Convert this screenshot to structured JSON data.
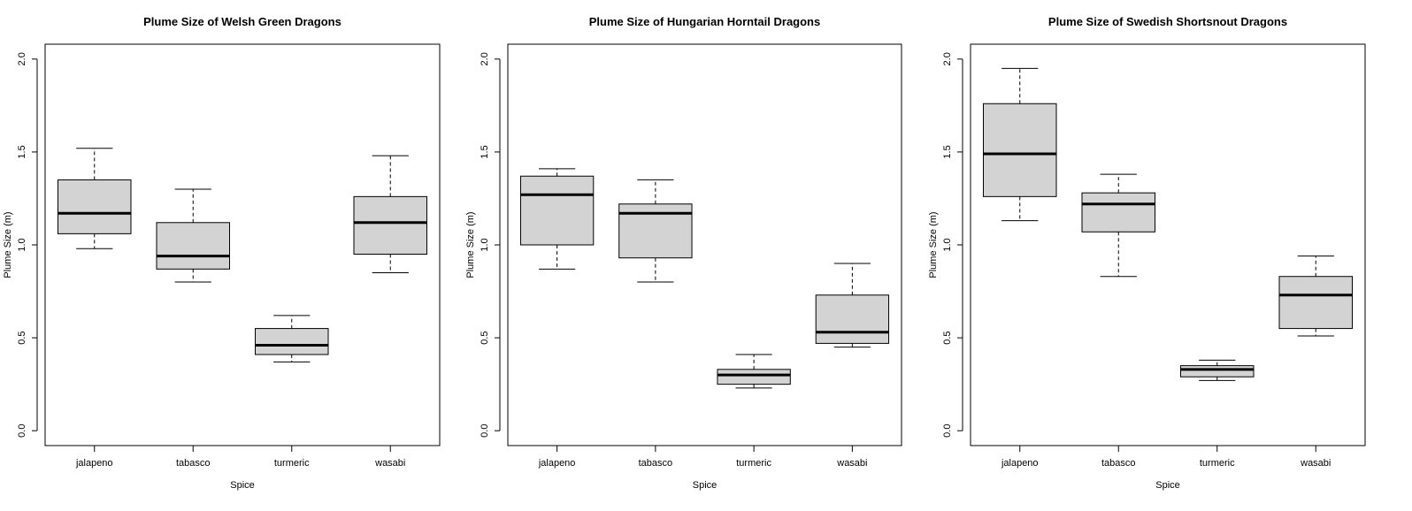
{
  "chart_data": [
    {
      "type": "boxplot",
      "title": "Plume Size of Welsh Green Dragons",
      "xlabel": "Spice",
      "ylabel": "Plume Size (m)",
      "categories": [
        "jalapeno",
        "tabasco",
        "turmeric",
        "wasabi"
      ],
      "yticks": [
        "0.0",
        "0.5",
        "1.0",
        "1.5",
        "2.0"
      ],
      "ylim": [
        -0.08,
        2.08
      ],
      "boxes": [
        {
          "min": 0.98,
          "q1": 1.06,
          "median": 1.17,
          "q3": 1.35,
          "max": 1.52
        },
        {
          "min": 0.8,
          "q1": 0.87,
          "median": 0.94,
          "q3": 1.12,
          "max": 1.3
        },
        {
          "min": 0.37,
          "q1": 0.41,
          "median": 0.46,
          "q3": 0.55,
          "max": 0.62
        },
        {
          "min": 0.85,
          "q1": 0.95,
          "median": 1.12,
          "q3": 1.26,
          "max": 1.48
        }
      ],
      "box_color": "#d3d3d3"
    },
    {
      "type": "boxplot",
      "title": "Plume Size of Hungarian Horntail Dragons",
      "xlabel": "Spice",
      "ylabel": "Plume Size (m)",
      "categories": [
        "jalapeno",
        "tabasco",
        "turmeric",
        "wasabi"
      ],
      "yticks": [
        "0.0",
        "0.5",
        "1.0",
        "1.5",
        "2.0"
      ],
      "ylim": [
        -0.08,
        2.08
      ],
      "boxes": [
        {
          "min": 0.87,
          "q1": 1.0,
          "median": 1.27,
          "q3": 1.37,
          "max": 1.41
        },
        {
          "min": 0.8,
          "q1": 0.93,
          "median": 1.17,
          "q3": 1.22,
          "max": 1.35
        },
        {
          "min": 0.23,
          "q1": 0.25,
          "median": 0.3,
          "q3": 0.33,
          "max": 0.41
        },
        {
          "min": 0.45,
          "q1": 0.47,
          "median": 0.53,
          "q3": 0.73,
          "max": 0.9
        }
      ],
      "box_color": "#d3d3d3"
    },
    {
      "type": "boxplot",
      "title": "Plume Size of Swedish Shortsnout Dragons",
      "xlabel": "Spice",
      "ylabel": "Plume Size (m)",
      "categories": [
        "jalapeno",
        "tabasco",
        "turmeric",
        "wasabi"
      ],
      "yticks": [
        "0.0",
        "0.5",
        "1.0",
        "1.5",
        "2.0"
      ],
      "ylim": [
        -0.08,
        2.08
      ],
      "boxes": [
        {
          "min": 1.13,
          "q1": 1.26,
          "median": 1.49,
          "q3": 1.76,
          "max": 1.95
        },
        {
          "min": 0.83,
          "q1": 1.07,
          "median": 1.22,
          "q3": 1.28,
          "max": 1.38
        },
        {
          "min": 0.27,
          "q1": 0.29,
          "median": 0.33,
          "q3": 0.35,
          "max": 0.38
        },
        {
          "min": 0.51,
          "q1": 0.55,
          "median": 0.73,
          "q3": 0.83,
          "max": 0.94
        }
      ],
      "box_color": "#d3d3d3"
    }
  ]
}
